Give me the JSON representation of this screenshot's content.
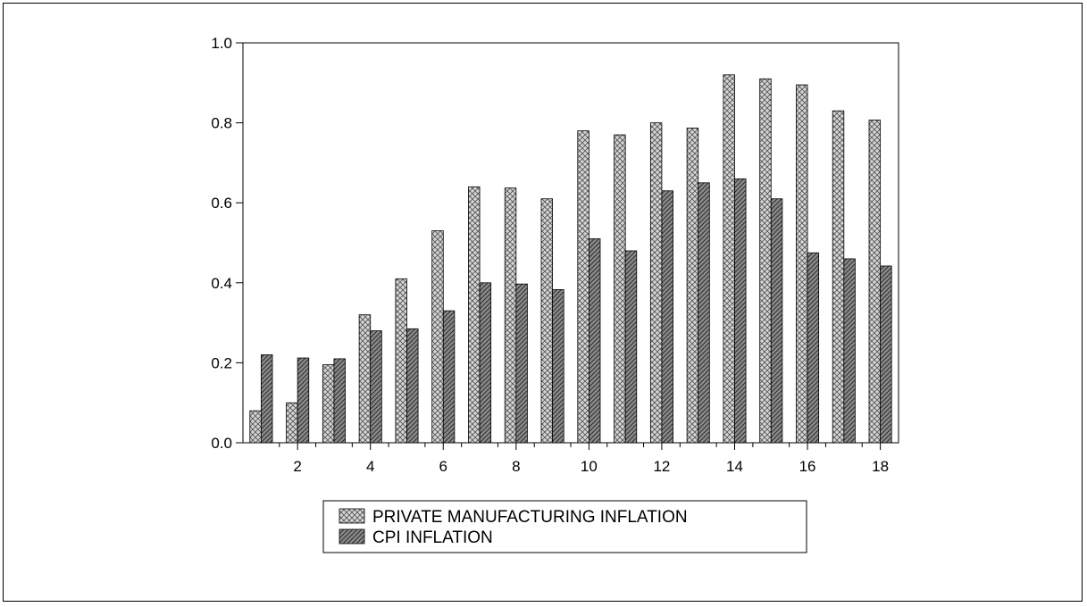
{
  "chart_data": {
    "type": "bar",
    "title": "",
    "xlabel": "",
    "ylabel": "",
    "x": [
      1,
      2,
      3,
      4,
      5,
      6,
      7,
      8,
      9,
      10,
      11,
      12,
      13,
      14,
      15,
      16,
      17,
      18
    ],
    "x_tick_labels": [
      "2",
      "4",
      "6",
      "8",
      "10",
      "12",
      "14",
      "16",
      "18"
    ],
    "y_tick_labels": [
      "0.0",
      "0.2",
      "0.4",
      "0.6",
      "0.8",
      "1.0"
    ],
    "ylim": [
      0.0,
      1.0
    ],
    "grid": false,
    "legend_position": "bottom-center",
    "series": [
      {
        "name": "PRIVATE MANUFACTURING INFLATION",
        "pattern": "crosshatch",
        "color": "#c8c8c8",
        "values": [
          0.08,
          0.1,
          0.195,
          0.32,
          0.41,
          0.53,
          0.64,
          0.637,
          0.61,
          0.78,
          0.77,
          0.8,
          0.787,
          0.92,
          0.91,
          0.895,
          0.83,
          0.807
        ]
      },
      {
        "name": "CPI INFLATION",
        "pattern": "diagonal",
        "color": "#8a8a8a",
        "values": [
          0.22,
          0.212,
          0.21,
          0.28,
          0.285,
          0.33,
          0.4,
          0.397,
          0.383,
          0.51,
          0.48,
          0.63,
          0.65,
          0.66,
          0.61,
          0.475,
          0.46,
          0.442
        ]
      }
    ]
  }
}
